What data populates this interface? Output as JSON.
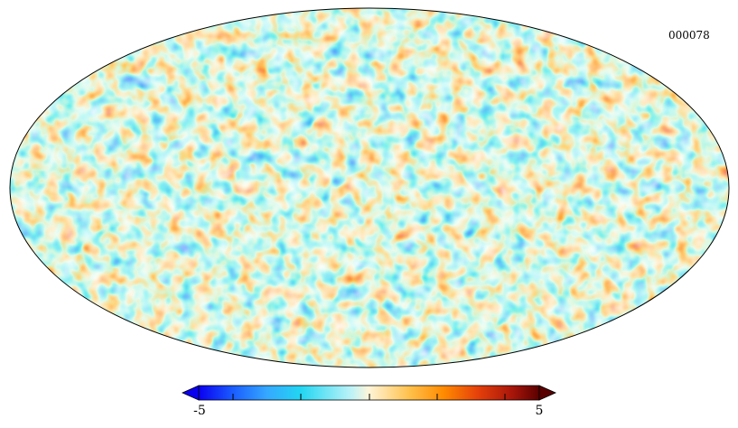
{
  "map": {
    "label": "000078"
  },
  "colorbar": {
    "min_label": "-5",
    "max_label": "5",
    "stops": [
      "#0a00f0",
      "#1a5cff",
      "#35a8ff",
      "#22d6f2",
      "#bff3f7",
      "#fff5d8",
      "#ffc04a",
      "#ff8a00",
      "#e5400a",
      "#a8160a",
      "#5a0000"
    ]
  }
}
